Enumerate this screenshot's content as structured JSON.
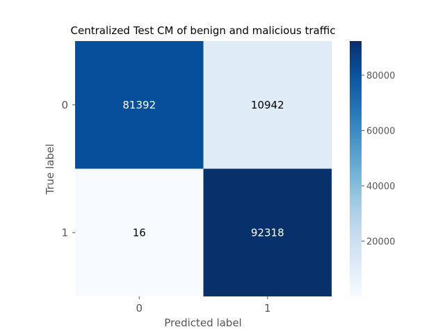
{
  "chart_data": {
    "type": "heatmap",
    "title": "Centralized Test CM of benign and malicious traffic",
    "xlabel": "Predicted label",
    "ylabel": "True label",
    "x_categories": [
      "0",
      "1"
    ],
    "y_categories": [
      "0",
      "1"
    ],
    "values": [
      [
        81392,
        10942
      ],
      [
        16,
        92318
      ]
    ],
    "colormap": "Blues",
    "colorbar": {
      "range": [
        16,
        92318
      ],
      "ticks": [
        20000,
        40000,
        60000,
        80000
      ],
      "tick_labels": [
        "20000",
        "40000",
        "60000",
        "80000"
      ]
    },
    "grid": false
  }
}
